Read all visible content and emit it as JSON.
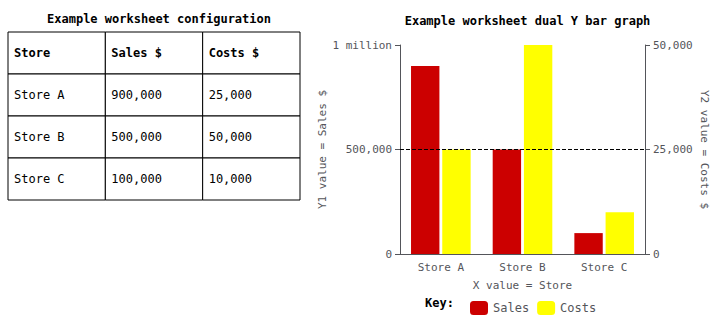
{
  "chart_data": [
    {
      "type": "table",
      "title": "Example worksheet configuration",
      "columns": [
        "Store",
        "Sales $",
        "Costs $"
      ],
      "rows": [
        [
          "Store A",
          "900,000",
          "25,000"
        ],
        [
          "Store B",
          "500,000",
          "50,000"
        ],
        [
          "Store C",
          "100,000",
          "10,000"
        ]
      ]
    },
    {
      "type": "bar",
      "title": "Example worksheet dual Y bar graph",
      "categories": [
        "Store A",
        "Store B",
        "Store C"
      ],
      "series": [
        {
          "name": "Sales",
          "color": "#cc0000",
          "values": [
            900000,
            500000,
            100000
          ]
        },
        {
          "name": "Costs",
          "color": "#ffff00",
          "values": [
            25000,
            50000,
            10000
          ],
          "axis": "y2"
        }
      ],
      "xlabel": "X value = Store",
      "ylabel": "Y1 value = Sales $",
      "y2label": "Y2 value = Costs $",
      "ylim": [
        0,
        1000000
      ],
      "yticks": [
        0,
        {
          "value": 500000,
          "label": "500,000"
        },
        {
          "value": 1000000,
          "label": "1 million"
        }
      ],
      "y2lim": [
        0,
        50000
      ],
      "y2ticks": [
        0,
        {
          "value": 25000,
          "label": "25,000"
        },
        {
          "value": 50000,
          "label": "50,000"
        }
      ],
      "reference_lines": [
        {
          "axis": "y",
          "value": 500000,
          "line_style": "dashed"
        }
      ],
      "legend": "bottom",
      "legend_title": "Key:",
      "grid": false
    }
  ]
}
